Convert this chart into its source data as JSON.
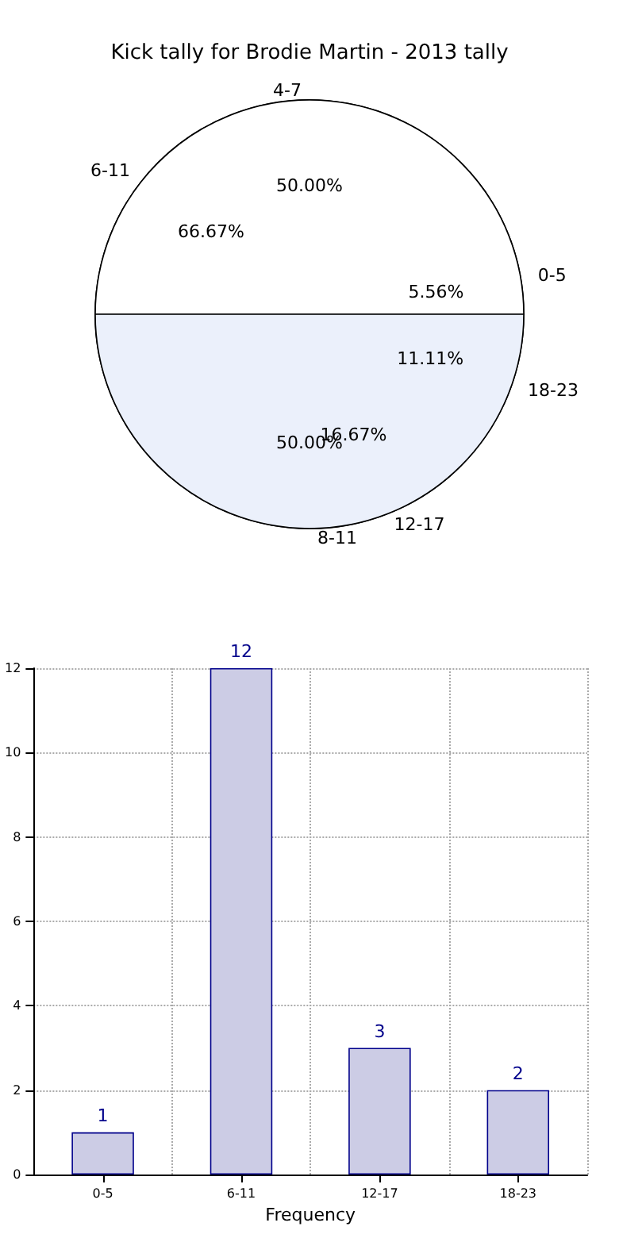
{
  "chart_data": [
    {
      "type": "pie",
      "title": "Kick tally for Brodie Martin - 2013 tally",
      "categories": [
        "4-7",
        "8-11"
      ],
      "values": [
        50,
        50
      ],
      "colors": [
        "#ffffff",
        "#ebf0fb"
      ],
      "value_labels": [
        "50.00%",
        "50.00%"
      ]
    },
    {
      "type": "pie",
      "categories": [
        "0-5",
        "6-11",
        "12-17",
        "18-23"
      ],
      "values": [
        5.56,
        66.67,
        16.67,
        11.11
      ],
      "colors": [
        "#ffffff",
        "#ebf0fb",
        "#dce7f8",
        "#b5d0f5"
      ],
      "value_labels": [
        "5.56%",
        "66.67%",
        "16.67%",
        "11.11%"
      ]
    },
    {
      "type": "bar",
      "xlabel": "Frequency",
      "categories": [
        "0-5",
        "6-11",
        "12-17",
        "18-23"
      ],
      "values": [
        1,
        12,
        3,
        2
      ],
      "color": "#ccccE5",
      "ylim": [
        0,
        12
      ],
      "yticks": [
        0,
        2,
        4,
        6,
        8,
        10,
        12
      ],
      "grid": true,
      "data_labels": true
    }
  ]
}
